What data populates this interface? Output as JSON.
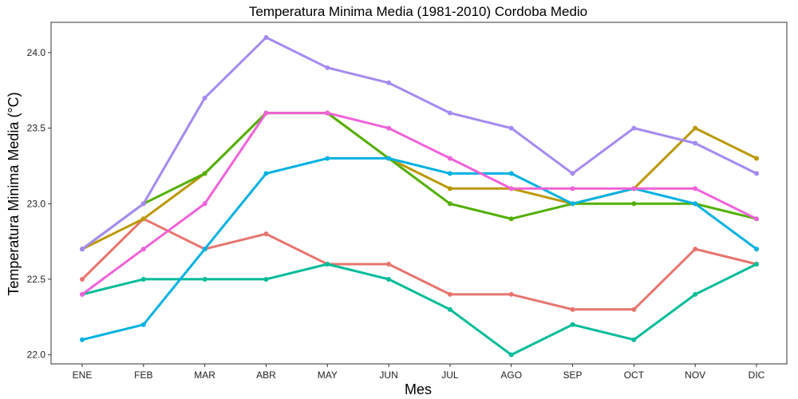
{
  "chart_data": {
    "type": "line",
    "title": "Temperatura Minima Media (1981-2010)  Cordoba Medio",
    "xlabel": "Mes",
    "ylabel": "Temperatura Minima Media  (°C)",
    "categories": [
      "ENE",
      "FEB",
      "MAR",
      "ABR",
      "MAY",
      "JUN",
      "JUL",
      "AGO",
      "SEP",
      "OCT",
      "NOV",
      "DIC"
    ],
    "ylim": [
      21.94,
      24.2
    ],
    "yticks": [
      22.0,
      22.5,
      23.0,
      23.5,
      24.0
    ],
    "ytick_labels": [
      "22.0",
      "22.5",
      "23.0",
      "23.5",
      "24.0"
    ],
    "grid": false,
    "legend": "none",
    "series": [
      {
        "color": "#E7756F",
        "values": [
          22.5,
          22.9,
          22.7,
          22.8,
          22.6,
          22.6,
          22.4,
          22.4,
          22.3,
          22.3,
          22.7,
          22.6
        ]
      },
      {
        "color": "#BA9800",
        "values": [
          22.7,
          22.9,
          23.2,
          23.6,
          23.6,
          23.3,
          23.1,
          23.1,
          23.0,
          23.1,
          23.5,
          23.3
        ]
      },
      {
        "color": "#53AF00",
        "values": [
          22.7,
          23.0,
          23.2,
          23.6,
          23.6,
          23.3,
          23.0,
          22.9,
          23.0,
          23.0,
          23.0,
          22.9
        ]
      },
      {
        "color": "#00BC98",
        "values": [
          22.4,
          22.5,
          22.5,
          22.5,
          22.6,
          22.5,
          22.3,
          22.0,
          22.2,
          22.1,
          22.4,
          22.6
        ]
      },
      {
        "color": "#00B1E2",
        "values": [
          22.1,
          22.2,
          22.7,
          23.2,
          23.3,
          23.3,
          23.2,
          23.2,
          23.0,
          23.1,
          23.0,
          22.7
        ]
      },
      {
        "color": "#A58AF2",
        "values": [
          22.7,
          23.0,
          23.7,
          24.1,
          23.9,
          23.8,
          23.6,
          23.5,
          23.2,
          23.5,
          23.4,
          23.2
        ]
      },
      {
        "color": "#F062D8",
        "values": [
          22.4,
          22.7,
          23.0,
          23.6,
          23.6,
          23.5,
          23.3,
          23.1,
          23.1,
          23.1,
          23.1,
          22.9
        ]
      }
    ]
  }
}
